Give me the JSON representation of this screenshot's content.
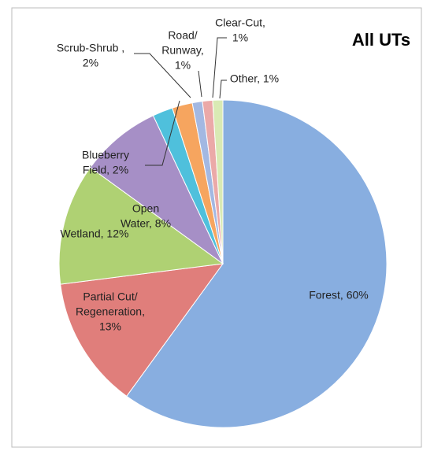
{
  "chart_data": {
    "type": "pie",
    "title": "All UTs",
    "values": [
      60,
      13,
      12,
      8,
      2,
      2,
      1,
      1,
      1
    ],
    "value_labels": [
      [
        "Forest, 60%"
      ],
      [
        "Partial Cut/",
        "Regeneration,",
        "13%"
      ],
      [
        "Wetland, 12%"
      ],
      [
        "Open",
        "Water, 8%"
      ],
      [
        "Blueberry",
        "Field, 2%"
      ],
      [
        "Scrub-Shrub ,",
        "2%"
      ],
      [
        "Road/",
        "Runway,",
        "1%"
      ],
      [
        "Clear-Cut,",
        "1%"
      ],
      [
        "Other, 1%"
      ]
    ],
    "colors": [
      "#88aee0",
      "#e07e7b",
      "#afd173",
      "#a68fc6",
      "#4fc0dc",
      "#f6a55f",
      "#a3b8e2",
      "#eba9a8",
      "#d9eab4"
    ],
    "start_angle": 0,
    "direction": "clockwise"
  }
}
